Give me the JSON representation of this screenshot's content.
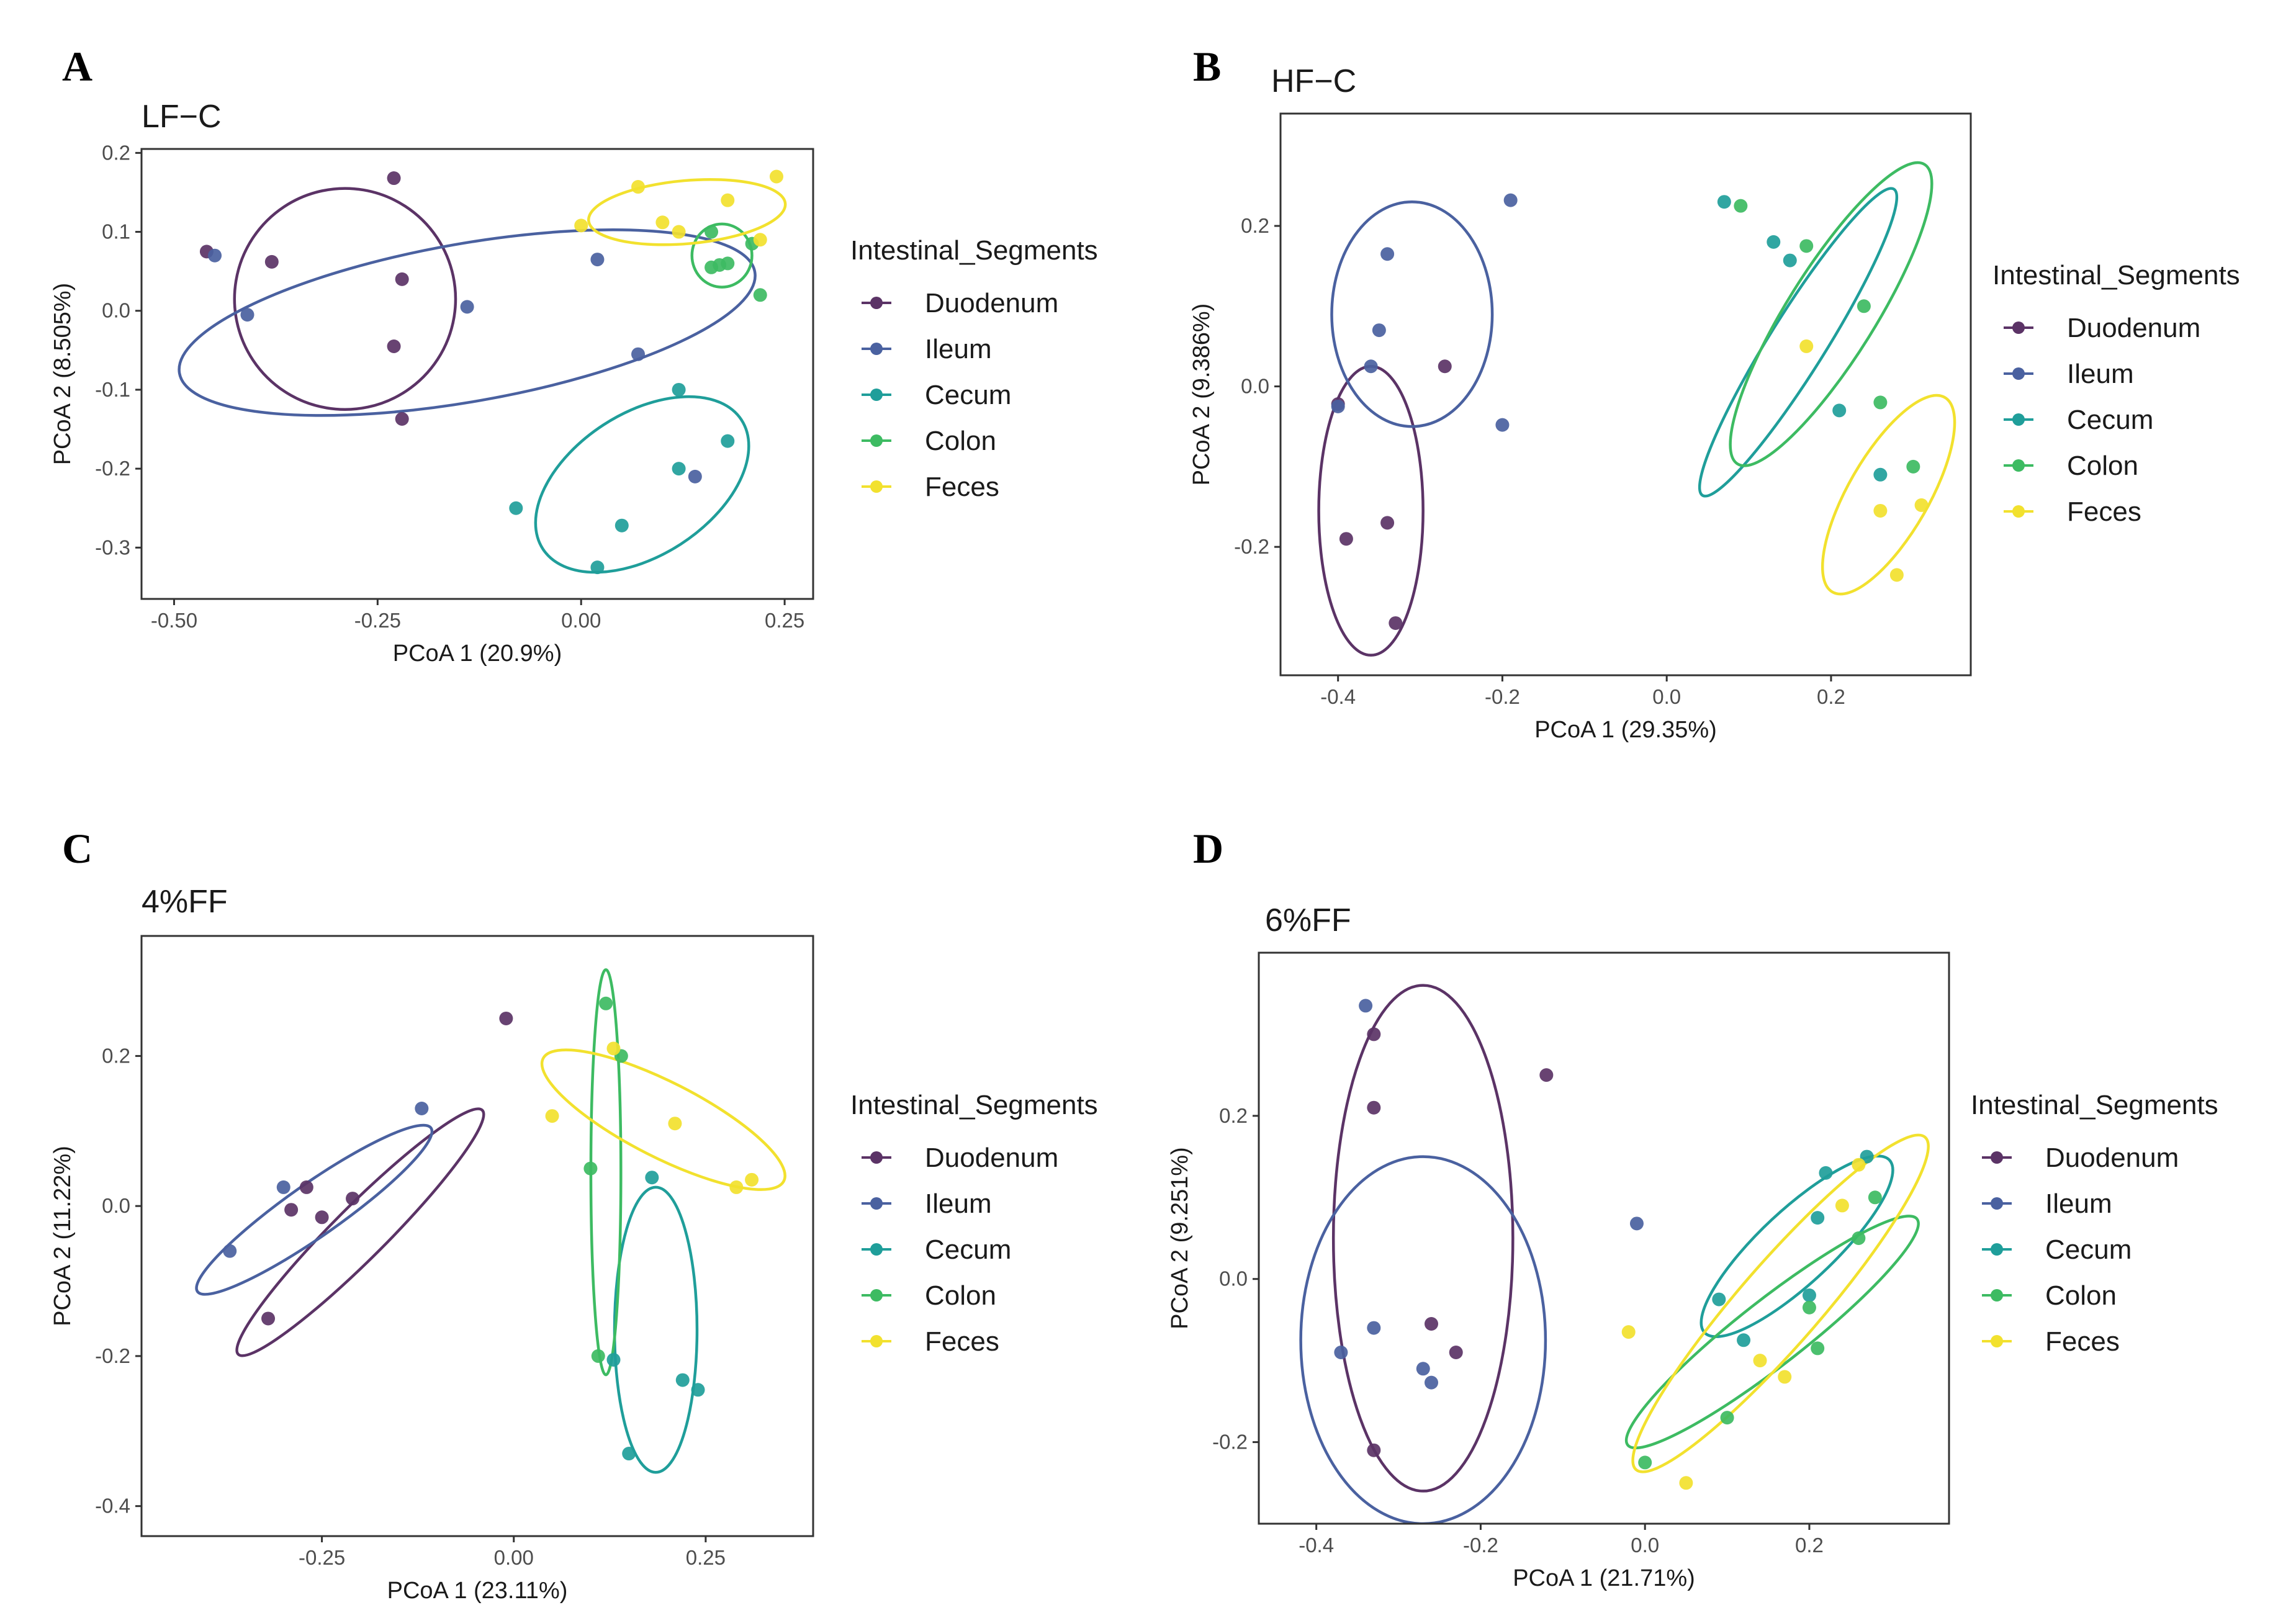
{
  "colors": {
    "Duodenum": "#5b3366",
    "Ileum": "#4a61a0",
    "Cecum": "#1f9e9a",
    "Colon": "#3dbb62",
    "Feces": "#f2e12e"
  },
  "chart_data": [
    {
      "type": "scatter",
      "panel": "A",
      "title": "LF−C",
      "xlabel": "PCoA 1 (20.9%)",
      "ylabel": "PCoA 2 (8.505%)",
      "xlim": [
        -0.54,
        0.285
      ],
      "ylim": [
        -0.365,
        0.205
      ],
      "xticks": [
        -0.5,
        -0.25,
        0.0,
        0.25
      ],
      "xtick_labels": [
        "-0.50",
        "-0.25",
        "0.00",
        "0.25"
      ],
      "yticks": [
        0.2,
        0.1,
        0.0,
        -0.1,
        -0.2,
        -0.3
      ],
      "ytick_labels": [
        "0.2",
        "0.1",
        "0.0",
        "-0.1",
        "-0.2",
        "-0.3"
      ],
      "legend_title": "Intestinal_Segments",
      "legend_items": [
        "Duodenum",
        "Ileum",
        "Cecum",
        "Colon",
        "Feces"
      ],
      "series": [
        {
          "name": "Duodenum",
          "points": [
            [
              -0.46,
              0.075
            ],
            [
              -0.38,
              0.062
            ],
            [
              -0.23,
              0.168
            ],
            [
              -0.22,
              0.04
            ],
            [
              -0.23,
              -0.045
            ],
            [
              -0.22,
              -0.137
            ]
          ],
          "ellipse": {
            "cx": -0.29,
            "cy": 0.015,
            "rx": 0.14,
            "ry": 0.14,
            "angle": 12
          }
        },
        {
          "name": "Ileum",
          "points": [
            [
              -0.45,
              0.07
            ],
            [
              -0.41,
              -0.005
            ],
            [
              -0.14,
              0.005
            ],
            [
              0.02,
              0.065
            ],
            [
              0.07,
              -0.055
            ],
            [
              0.14,
              -0.21
            ]
          ],
          "ellipse": {
            "cx": -0.14,
            "cy": -0.015,
            "rx": 0.37,
            "ry": 0.1,
            "angle": 10
          }
        },
        {
          "name": "Cecum",
          "points": [
            [
              -0.08,
              -0.25
            ],
            [
              0.02,
              -0.325
            ],
            [
              0.05,
              -0.272
            ],
            [
              0.12,
              -0.2
            ],
            [
              0.12,
              -0.1
            ],
            [
              0.18,
              -0.165
            ]
          ],
          "ellipse": {
            "cx": 0.075,
            "cy": -0.22,
            "rx": 0.15,
            "ry": 0.09,
            "angle": 33
          }
        },
        {
          "name": "Colon",
          "points": [
            [
              0.16,
              0.1
            ],
            [
              0.17,
              0.058
            ],
            [
              0.18,
              0.06
            ],
            [
              0.16,
              0.055
            ],
            [
              0.21,
              0.085
            ],
            [
              0.22,
              0.02
            ]
          ],
          "ellipse": {
            "cx": 0.173,
            "cy": 0.07,
            "rx": 0.038,
            "ry": 0.04,
            "angle": 0
          }
        },
        {
          "name": "Feces",
          "points": [
            [
              0.0,
              0.108
            ],
            [
              0.07,
              0.157
            ],
            [
              0.1,
              0.112
            ],
            [
              0.12,
              0.1
            ],
            [
              0.18,
              0.14
            ],
            [
              0.22,
              0.09
            ],
            [
              0.24,
              0.17
            ]
          ],
          "ellipse": {
            "cx": 0.13,
            "cy": 0.125,
            "rx": 0.125,
            "ry": 0.04,
            "angle": 5
          }
        }
      ]
    },
    {
      "type": "scatter",
      "panel": "B",
      "title": "HF−C",
      "xlabel": "PCoA 1 (29.35%)",
      "ylabel": "PCoA 2 (9.386%)",
      "xlim": [
        -0.47,
        0.37
      ],
      "ylim": [
        -0.36,
        0.34
      ],
      "xticks": [
        -0.4,
        -0.2,
        0.0,
        0.2
      ],
      "xtick_labels": [
        "-0.4",
        "-0.2",
        "0.0",
        "0.2"
      ],
      "yticks": [
        0.2,
        0.0,
        -0.2
      ],
      "ytick_labels": [
        "0.2",
        "0.0",
        "-0.2"
      ],
      "legend_title": "Intestinal_Segments",
      "legend_items": [
        "Duodenum",
        "Ileum",
        "Cecum",
        "Colon",
        "Feces"
      ],
      "series": [
        {
          "name": "Duodenum",
          "points": [
            [
              -0.4,
              -0.022
            ],
            [
              -0.39,
              -0.19
            ],
            [
              -0.34,
              -0.17
            ],
            [
              -0.33,
              -0.295
            ],
            [
              -0.27,
              0.025
            ]
          ],
          "ellipse": {
            "cx": -0.36,
            "cy": -0.155,
            "rx": 0.065,
            "ry": 0.18,
            "angle": 0
          }
        },
        {
          "name": "Ileum",
          "points": [
            [
              -0.4,
              -0.025
            ],
            [
              -0.36,
              0.025
            ],
            [
              -0.35,
              0.07
            ],
            [
              -0.34,
              0.165
            ],
            [
              -0.2,
              -0.048
            ],
            [
              -0.19,
              0.232
            ]
          ],
          "ellipse": {
            "cx": -0.31,
            "cy": 0.09,
            "rx": 0.1,
            "ry": 0.14,
            "angle": 0
          }
        },
        {
          "name": "Cecum",
          "points": [
            [
              0.07,
              0.23
            ],
            [
              0.13,
              0.18
            ],
            [
              0.15,
              0.157
            ],
            [
              0.21,
              -0.03
            ],
            [
              0.26,
              -0.11
            ]
          ],
          "ellipse": {
            "cx": 0.16,
            "cy": 0.055,
            "rx": 0.225,
            "ry": 0.035,
            "angle": 58
          }
        },
        {
          "name": "Colon",
          "points": [
            [
              0.09,
              0.225
            ],
            [
              0.17,
              0.175
            ],
            [
              0.24,
              0.1
            ],
            [
              0.26,
              -0.02
            ],
            [
              0.3,
              -0.1
            ]
          ],
          "ellipse": {
            "cx": 0.2,
            "cy": 0.09,
            "rx": 0.22,
            "ry": 0.055,
            "angle": 58
          }
        },
        {
          "name": "Feces",
          "points": [
            [
              0.17,
              0.05
            ],
            [
              0.26,
              -0.155
            ],
            [
              0.28,
              -0.235
            ],
            [
              0.31,
              -0.148
            ]
          ],
          "ellipse": {
            "cx": 0.27,
            "cy": -0.135,
            "rx": 0.14,
            "ry": 0.05,
            "angle": 60
          }
        }
      ]
    },
    {
      "type": "scatter",
      "panel": "C",
      "title": "4%FF",
      "xlabel": "PCoA 1 (23.11%)",
      "ylabel": "PCoA 2 (11.22%)",
      "xlim": [
        -0.485,
        0.39
      ],
      "ylim": [
        -0.44,
        0.36
      ],
      "xticks": [
        -0.25,
        0.0,
        0.25
      ],
      "xtick_labels": [
        "-0.25",
        "0.00",
        "0.25"
      ],
      "yticks": [
        0.2,
        0.0,
        -0.2,
        -0.4
      ],
      "ytick_labels": [
        "0.2",
        "0.0",
        "-0.2",
        "-0.4"
      ],
      "legend_title": "Intestinal_Segments",
      "legend_items": [
        "Duodenum",
        "Ileum",
        "Cecum",
        "Colon",
        "Feces"
      ],
      "series": [
        {
          "name": "Duodenum",
          "points": [
            [
              -0.32,
              -0.15
            ],
            [
              -0.29,
              -0.005
            ],
            [
              -0.27,
              0.025
            ],
            [
              -0.25,
              -0.015
            ],
            [
              -0.21,
              0.01
            ],
            [
              -0.01,
              0.25
            ]
          ],
          "ellipse": {
            "cx": -0.2,
            "cy": -0.035,
            "rx": 0.23,
            "ry": 0.035,
            "angle": 45
          }
        },
        {
          "name": "Ileum",
          "points": [
            [
              -0.37,
              -0.06
            ],
            [
              -0.3,
              0.025
            ],
            [
              -0.12,
              0.13
            ]
          ],
          "ellipse": {
            "cx": -0.26,
            "cy": -0.005,
            "rx": 0.19,
            "ry": 0.035,
            "angle": 35
          }
        },
        {
          "name": "Cecum",
          "points": [
            [
              0.13,
              -0.205
            ],
            [
              0.15,
              -0.33
            ],
            [
              0.18,
              0.038
            ],
            [
              0.22,
              -0.232
            ],
            [
              0.24,
              -0.245
            ]
          ],
          "ellipse": {
            "cx": 0.185,
            "cy": -0.165,
            "rx": 0.055,
            "ry": 0.19,
            "angle": 0
          }
        },
        {
          "name": "Colon",
          "points": [
            [
              0.1,
              0.05
            ],
            [
              0.11,
              -0.2
            ],
            [
              0.12,
              0.27
            ],
            [
              0.14,
              0.2
            ]
          ],
          "ellipse": {
            "cx": 0.12,
            "cy": 0.045,
            "rx": 0.02,
            "ry": 0.27,
            "angle": 0
          }
        },
        {
          "name": "Feces",
          "points": [
            [
              0.05,
              0.12
            ],
            [
              0.13,
              0.21
            ],
            [
              0.21,
              0.11
            ],
            [
              0.29,
              0.025
            ],
            [
              0.31,
              0.035
            ]
          ],
          "ellipse": {
            "cx": 0.195,
            "cy": 0.115,
            "rx": 0.18,
            "ry": 0.05,
            "angle": -27
          }
        }
      ]
    },
    {
      "type": "scatter",
      "panel": "D",
      "title": "6%FF",
      "xlabel": "PCoA 1 (21.71%)",
      "ylabel": "PCoA 2 (9.251%)",
      "xlim": [
        -0.47,
        0.37
      ],
      "ylim": [
        -0.3,
        0.4
      ],
      "xticks": [
        -0.4,
        -0.2,
        0.0,
        0.2
      ],
      "xtick_labels": [
        "-0.4",
        "-0.2",
        "0.0",
        "0.2"
      ],
      "yticks": [
        0.2,
        0.0,
        -0.2
      ],
      "ytick_labels": [
        "0.2",
        "0.0",
        "-0.2"
      ],
      "legend_title": "Intestinal_Segments",
      "legend_items": [
        "Duodenum",
        "Ileum",
        "Cecum",
        "Colon",
        "Feces"
      ],
      "series": [
        {
          "name": "Duodenum",
          "points": [
            [
              -0.33,
              0.3
            ],
            [
              -0.33,
              0.21
            ],
            [
              -0.33,
              -0.21
            ],
            [
              -0.26,
              -0.055
            ],
            [
              -0.23,
              -0.09
            ],
            [
              -0.12,
              0.25
            ]
          ],
          "ellipse": {
            "cx": -0.27,
            "cy": 0.05,
            "rx": 0.11,
            "ry": 0.31,
            "angle": 0
          }
        },
        {
          "name": "Ileum",
          "points": [
            [
              -0.34,
              0.335
            ],
            [
              -0.37,
              -0.09
            ],
            [
              -0.33,
              -0.06
            ],
            [
              -0.27,
              -0.11
            ],
            [
              -0.26,
              -0.127
            ],
            [
              -0.01,
              0.068
            ]
          ],
          "ellipse": {
            "cx": -0.27,
            "cy": -0.075,
            "rx": 0.15,
            "ry": 0.225,
            "angle": 0
          }
        },
        {
          "name": "Cecum",
          "points": [
            [
              0.09,
              -0.025
            ],
            [
              0.12,
              -0.075
            ],
            [
              0.2,
              -0.02
            ],
            [
              0.21,
              0.075
            ],
            [
              0.22,
              0.13
            ],
            [
              0.27,
              0.15
            ]
          ],
          "ellipse": {
            "cx": 0.185,
            "cy": 0.04,
            "rx": 0.155,
            "ry": 0.045,
            "angle": 43
          }
        },
        {
          "name": "Colon",
          "points": [
            [
              0.0,
              -0.225
            ],
            [
              0.1,
              -0.17
            ],
            [
              0.2,
              -0.035
            ],
            [
              0.21,
              -0.085
            ],
            [
              0.26,
              0.05
            ],
            [
              0.28,
              0.1
            ]
          ],
          "ellipse": {
            "cx": 0.155,
            "cy": -0.065,
            "rx": 0.225,
            "ry": 0.04,
            "angle": 38
          }
        },
        {
          "name": "Feces",
          "points": [
            [
              -0.02,
              -0.065
            ],
            [
              0.05,
              -0.25
            ],
            [
              0.14,
              -0.1
            ],
            [
              0.17,
              -0.12
            ],
            [
              0.24,
              0.09
            ],
            [
              0.26,
              0.14
            ]
          ],
          "ellipse": {
            "cx": 0.165,
            "cy": -0.03,
            "rx": 0.27,
            "ry": 0.05,
            "angle": 49
          }
        }
      ]
    }
  ]
}
